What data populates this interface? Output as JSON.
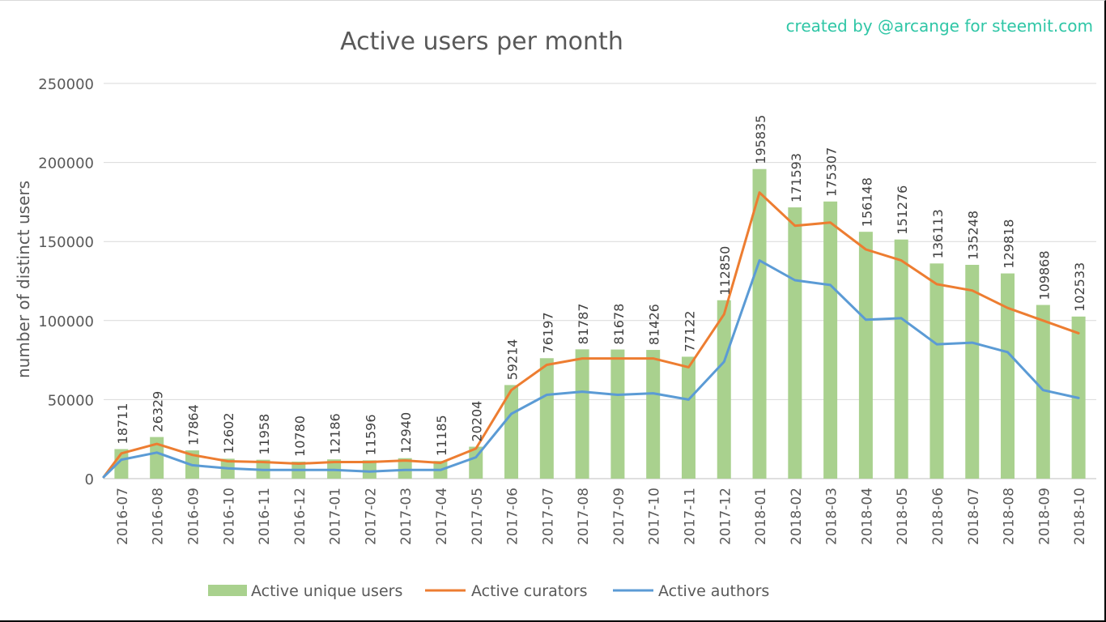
{
  "credit": "created by @arcange for steemit.com",
  "colors": {
    "bars": "#a9d18e",
    "curators": "#ed7d31",
    "authors": "#5b9bd5",
    "grid": "#d9d9d9",
    "text": "#595959",
    "credit": "#2fc6a6"
  },
  "chart_data": {
    "type": "bar",
    "title": "Active users per month",
    "xlabel": "",
    "ylabel": "number of distinct users",
    "ylim": [
      0,
      250000
    ],
    "yticks": [
      "0",
      "50000",
      "100000",
      "150000",
      "200000",
      "250000"
    ],
    "grid": true,
    "legend_position": "bottom",
    "categories": [
      "2016-07",
      "2016-08",
      "2016-09",
      "2016-10",
      "2016-11",
      "2016-12",
      "2017-01",
      "2017-02",
      "2017-03",
      "2017-04",
      "2017-05",
      "2017-06",
      "2017-07",
      "2017-08",
      "2017-09",
      "2017-10",
      "2017-11",
      "2017-12",
      "2018-01",
      "2018-02",
      "2018-03",
      "2018-04",
      "2018-05",
      "2018-06",
      "2018-07",
      "2018-08",
      "2018-09",
      "2018-10"
    ],
    "series": [
      {
        "name": "Active unique users",
        "kind": "bar",
        "values": [
          18711,
          26329,
          17864,
          12602,
          11958,
          10780,
          12186,
          11596,
          12940,
          11185,
          20204,
          59214,
          76197,
          81787,
          81678,
          81426,
          77122,
          112850,
          195835,
          171593,
          175307,
          156148,
          151276,
          136113,
          135248,
          129818,
          109868,
          102533
        ],
        "labels": [
          "18711",
          "26329",
          "17864",
          "12602",
          "11958",
          "10780",
          "12186",
          "11596",
          "12940",
          "11185",
          "20204",
          "59214",
          "76197",
          "81787",
          "81678",
          "81426",
          "77122",
          "112850",
          "195835",
          "171593",
          "175307",
          "156148",
          "151276",
          "136113",
          "135248",
          "129818",
          "109868",
          "102533"
        ]
      },
      {
        "name": "Active curators",
        "kind": "line",
        "values": [
          16000,
          22000,
          15000,
          11000,
          10500,
          9500,
          10500,
          10500,
          11500,
          10000,
          19000,
          56000,
          72000,
          76000,
          76000,
          76000,
          70500,
          104000,
          181000,
          160000,
          162000,
          145000,
          138000,
          123000,
          119000,
          108000,
          100000,
          92000
        ]
      },
      {
        "name": "Active authors",
        "kind": "line",
        "values": [
          12000,
          16500,
          8500,
          6500,
          5500,
          5500,
          5500,
          4500,
          5500,
          5500,
          13500,
          41000,
          53000,
          55000,
          53000,
          54000,
          50000,
          74000,
          138000,
          125500,
          122500,
          100500,
          101500,
          85000,
          86000,
          80000,
          56000,
          51000
        ]
      }
    ]
  }
}
